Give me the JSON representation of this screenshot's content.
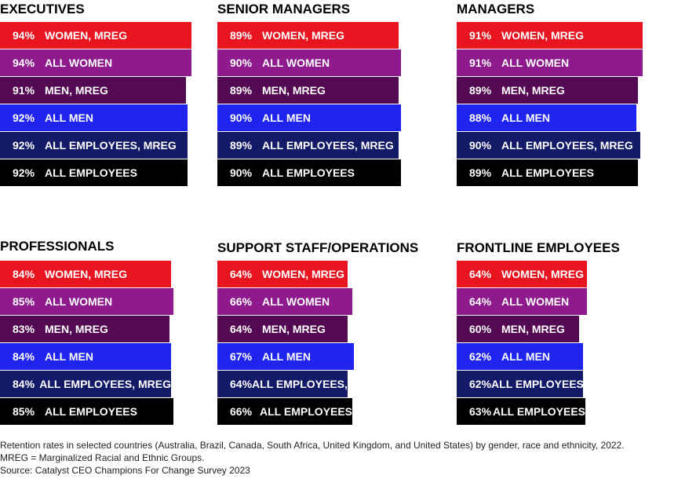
{
  "colors": {
    "WOMEN, MREG": "#e8141f",
    "ALL WOMEN": "#8e1a8e",
    "MEN, MREG": "#540a52",
    "ALL MEN": "#1f24f0",
    "ALL EMPLOYEES, MREG": "#131b68",
    "ALL EMPLOYEES": "#000000"
  },
  "chart_data": [
    {
      "type": "bar",
      "title": "EXECUTIVES",
      "categories": [
        "WOMEN, MREG",
        "ALL WOMEN",
        "MEN, MREG",
        "ALL MEN",
        "ALL EMPLOYEES, MREG",
        "ALL EMPLOYEES"
      ],
      "values": [
        94,
        94,
        91,
        92,
        92,
        92
      ],
      "labels": [
        "94%",
        "94%",
        "91%",
        "92%",
        "92%",
        "92%"
      ]
    },
    {
      "type": "bar",
      "title": "SENIOR MANAGERS",
      "categories": [
        "WOMEN, MREG",
        "ALL WOMEN",
        "MEN, MREG",
        "ALL MEN",
        "ALL EMPLOYEES, MREG",
        "ALL EMPLOYEES"
      ],
      "values": [
        89,
        90,
        89,
        90,
        89,
        90
      ],
      "labels": [
        "89%",
        "90%",
        "89%",
        "90%",
        "89%",
        "90%"
      ]
    },
    {
      "type": "bar",
      "title": "MANAGERS",
      "categories": [
        "WOMEN, MREG",
        "ALL WOMEN",
        "MEN, MREG",
        "ALL MEN",
        "ALL EMPLOYEES, MREG",
        "ALL EMPLOYEES"
      ],
      "values": [
        91,
        91,
        89,
        88,
        90,
        89
      ],
      "labels": [
        "91%",
        "91%",
        "89%",
        "88%",
        "90%",
        "89%"
      ]
    },
    {
      "type": "bar",
      "title": "PROFESSIONALS",
      "categories": [
        "WOMEN, MREG",
        "ALL WOMEN",
        "MEN, MREG",
        "ALL MEN",
        "ALL EMPLOYEES, MREG",
        "ALL EMPLOYEES"
      ],
      "values": [
        84,
        85,
        83,
        84,
        84,
        85
      ],
      "labels": [
        "84%",
        "85%",
        "83%",
        "84%",
        "84%",
        "85%"
      ]
    },
    {
      "type": "bar",
      "title": "SUPPORT STAFF/OPERATIONS",
      "categories": [
        "WOMEN, MREG",
        "ALL WOMEN",
        "MEN, MREG",
        "ALL MEN",
        "ALL EMPLOYEES, MREG",
        "ALL EMPLOYEES"
      ],
      "values": [
        64,
        66,
        64,
        67,
        64,
        66
      ],
      "labels": [
        "64%",
        "66%",
        "64%",
        "67%",
        "64%",
        "66%"
      ]
    },
    {
      "type": "bar",
      "title": "FRONTLINE EMPLOYEES",
      "categories": [
        "WOMEN, MREG",
        "ALL WOMEN",
        "MEN, MREG",
        "ALL MEN",
        "ALL EMPLOYEES, MREG",
        "ALL EMPLOYEES"
      ],
      "values": [
        64,
        64,
        60,
        62,
        62,
        63
      ],
      "labels": [
        "64%",
        "64%",
        "60%",
        "62%",
        "62%",
        "63%"
      ]
    }
  ],
  "footnote": {
    "line1": "Retention rates in selected countries (Australia, Brazil, Canada, South Africa, United Kingdom, and United States) by gender, race and ethnicity, 2022.",
    "line2": "MREG = Marginalized Racial and Ethnic Groups.",
    "line3": "Source: Catalyst CEO Champions For Change Survey 2023"
  }
}
